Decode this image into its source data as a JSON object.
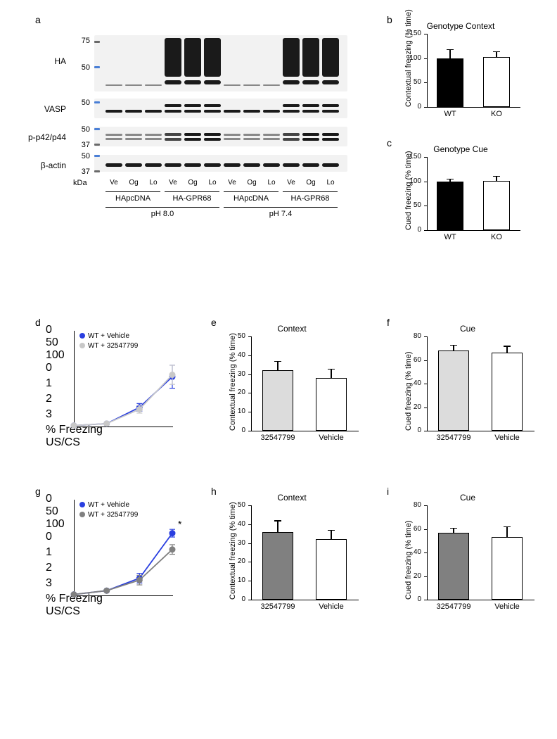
{
  "panel_a": {
    "label": "a",
    "mw_marks": [
      75,
      50,
      50,
      50,
      37,
      50,
      37
    ],
    "probes": [
      "HA",
      "VASP",
      "p-p42/p44",
      "β-actin"
    ],
    "kda": "kDa",
    "lanes": [
      "Ve",
      "Og",
      "Lo",
      "Ve",
      "Og",
      "Lo",
      "Ve",
      "Og",
      "Lo",
      "Ve",
      "Og",
      "Lo"
    ],
    "groups": [
      "HApcDNA",
      "HA-GPR68",
      "HApcDNA",
      "HA-GPR68"
    ],
    "ph_groups": [
      "pH 8.0",
      "pH 7.4"
    ]
  },
  "panel_b": {
    "label": "b",
    "title": "Genotype Context",
    "ylabel": "Contextual freezing (% time)",
    "ylim": [
      0,
      150
    ],
    "ytick_step": 50,
    "bars": [
      {
        "label": "WT",
        "value": 100,
        "err": 18,
        "color": "#000000"
      },
      {
        "label": "KO",
        "value": 102,
        "err": 12,
        "color": "#ffffff"
      }
    ]
  },
  "panel_c": {
    "label": "c",
    "title": "Genotype Cue",
    "ylabel": "Cued freezing (% time)",
    "ylim": [
      0,
      150
    ],
    "ytick_step": 50,
    "bars": [
      {
        "label": "WT",
        "value": 100,
        "err": 5,
        "color": "#000000"
      },
      {
        "label": "KO",
        "value": 101,
        "err": 10,
        "color": "#ffffff"
      }
    ]
  },
  "panel_d": {
    "label": "d",
    "ylabel": "% Freezing",
    "xlabel": "US/CS",
    "ylim": [
      0,
      100
    ],
    "ytick_step": 50,
    "xticks": [
      0,
      1,
      2,
      3
    ],
    "legend": [
      {
        "label": "WT + Vehicle",
        "color": "#2a3fe0"
      },
      {
        "label": "WT + 32547799",
        "color": "#c8c8c8"
      }
    ],
    "series": [
      {
        "color": "#2a3fe0",
        "points": [
          [
            0,
            1
          ],
          [
            1,
            3
          ],
          [
            2,
            20
          ],
          [
            3,
            52
          ]
        ],
        "err": [
          0,
          1,
          4,
          12
        ]
      },
      {
        "color": "#c8c8c8",
        "points": [
          [
            0,
            1
          ],
          [
            1,
            3
          ],
          [
            2,
            18
          ],
          [
            3,
            54
          ]
        ],
        "err": [
          0,
          1,
          4,
          10
        ]
      }
    ]
  },
  "panel_e": {
    "label": "e",
    "title": "Context",
    "ylabel": "Contextual freezing (% time)",
    "ylim": [
      0,
      50
    ],
    "ytick_step": 10,
    "bars": [
      {
        "label": "32547799",
        "value": 32,
        "err": 5,
        "color": "#dcdcdc"
      },
      {
        "label": "Vehicle",
        "value": 28,
        "err": 5,
        "color": "#ffffff"
      }
    ]
  },
  "panel_f": {
    "label": "f",
    "title": "Cue",
    "ylabel": "Cued freezing (% time)",
    "ylim": [
      0,
      80
    ],
    "ytick_step": 20,
    "bars": [
      {
        "label": "32547799",
        "value": 68,
        "err": 5,
        "color": "#dcdcdc"
      },
      {
        "label": "Vehicle",
        "value": 66,
        "err": 6,
        "color": "#ffffff"
      }
    ]
  },
  "panel_g": {
    "label": "g",
    "ylabel": "% Freezing",
    "xlabel": "US/CS",
    "ylim": [
      0,
      100
    ],
    "ytick_step": 50,
    "xticks": [
      0,
      1,
      2,
      3
    ],
    "star": "*",
    "legend": [
      {
        "label": "WT + Vehicle",
        "color": "#2a3fe0"
      },
      {
        "label": "WT + 32547799",
        "color": "#808080"
      }
    ],
    "series": [
      {
        "color": "#2a3fe0",
        "points": [
          [
            0,
            1
          ],
          [
            1,
            5
          ],
          [
            2,
            18
          ],
          [
            3,
            65
          ]
        ],
        "err": [
          0,
          1,
          5,
          4
        ]
      },
      {
        "color": "#808080",
        "points": [
          [
            0,
            1
          ],
          [
            1,
            5
          ],
          [
            2,
            16
          ],
          [
            3,
            48
          ]
        ],
        "err": [
          0,
          1,
          5,
          5
        ]
      }
    ]
  },
  "panel_h": {
    "label": "h",
    "title": "Context",
    "ylabel": "Contextual freezing (% time)",
    "ylim": [
      0,
      50
    ],
    "ytick_step": 10,
    "bars": [
      {
        "label": "32547799",
        "value": 36,
        "err": 6,
        "color": "#808080"
      },
      {
        "label": "Vehicle",
        "value": 32,
        "err": 5,
        "color": "#ffffff"
      }
    ]
  },
  "panel_i": {
    "label": "i",
    "title": "Cue",
    "ylabel": "Cued freezing (% time)",
    "ylim": [
      0,
      80
    ],
    "ytick_step": 20,
    "bars": [
      {
        "label": "32547799",
        "value": 57,
        "err": 4,
        "color": "#808080"
      },
      {
        "label": "Vehicle",
        "value": 53,
        "err": 9,
        "color": "#ffffff"
      }
    ]
  }
}
